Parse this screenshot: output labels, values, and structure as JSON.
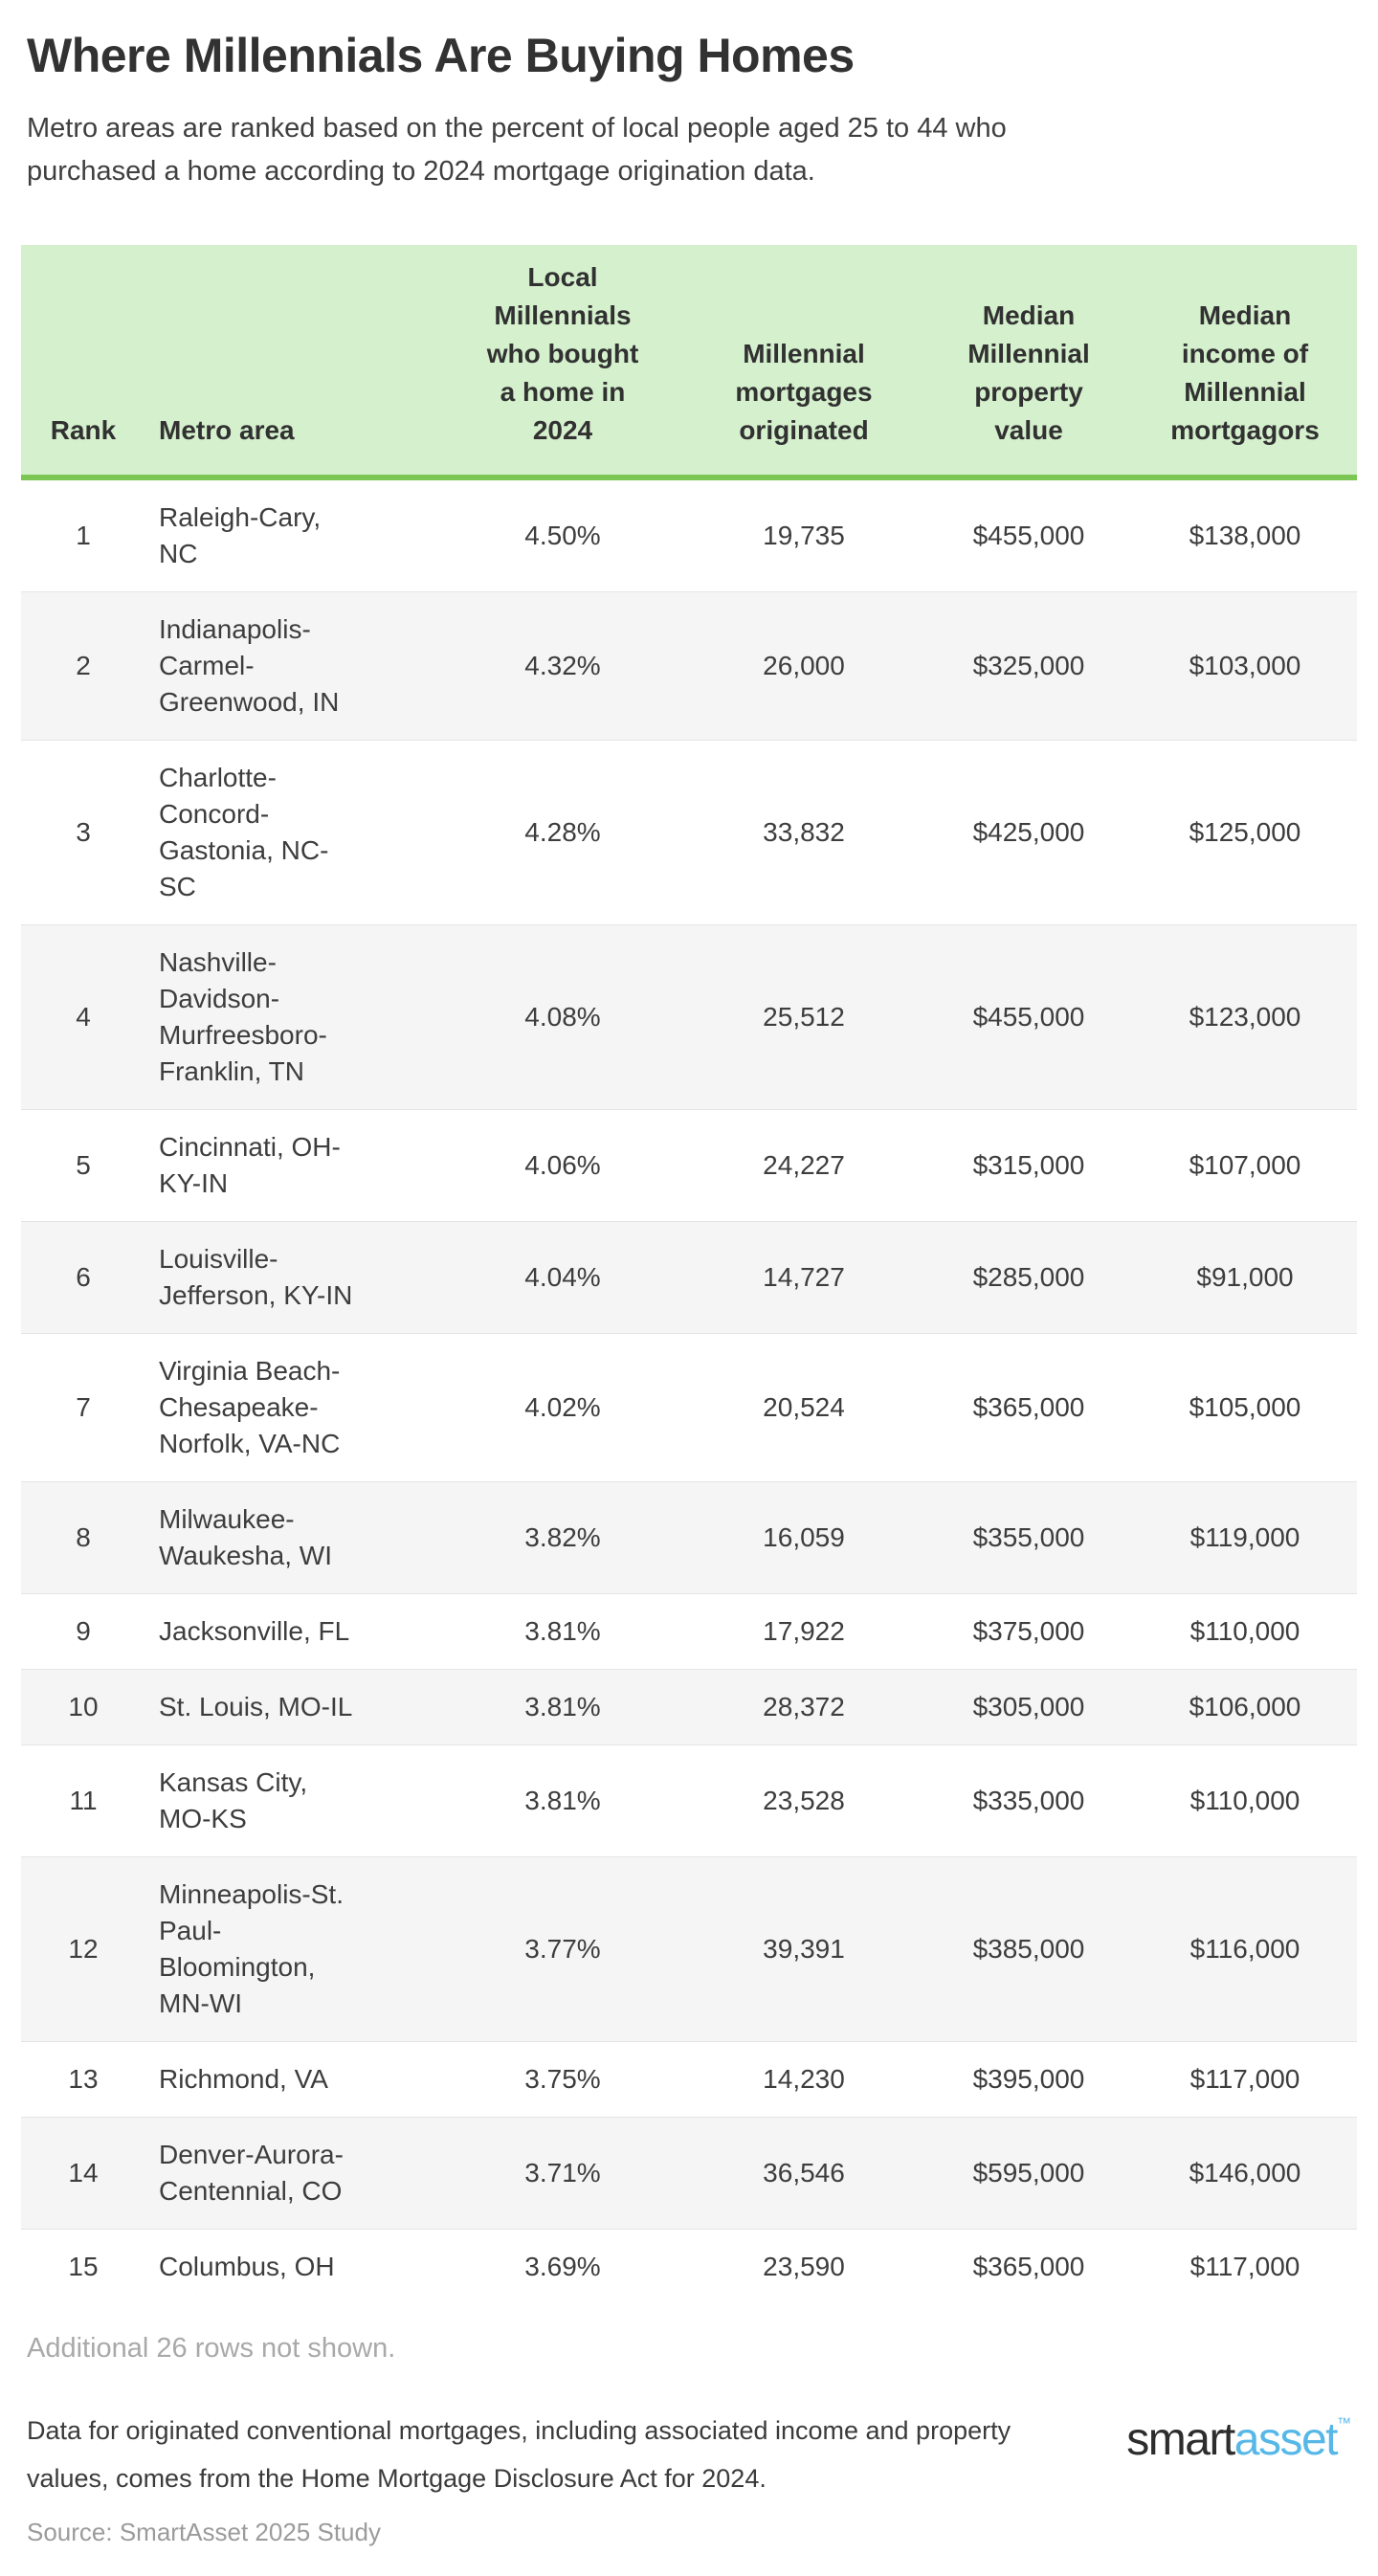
{
  "header": {
    "title": "Where Millennials Are Buying Homes",
    "subtitle": "Metro areas are ranked based on the percent of local people aged 25 to 44 who\npurchased a home according to 2024 mortgage origination data."
  },
  "table": {
    "columns": [
      {
        "key": "rank",
        "label": "Rank"
      },
      {
        "key": "metro",
        "label": "Metro area"
      },
      {
        "key": "pct",
        "label": "Local\nMillennials\nwho bought\na home in\n2024"
      },
      {
        "key": "mortgages",
        "label": "Millennial\nmortgages\noriginated"
      },
      {
        "key": "property",
        "label": "Median\nMillennial\nproperty\nvalue"
      },
      {
        "key": "income",
        "label": "Median\nincome of\nMillennial\nmortgagors"
      }
    ],
    "rows": [
      {
        "rank": "1",
        "metro": "Raleigh-Cary,\nNC",
        "pct": "4.50%",
        "mortgages": "19,735",
        "property": "$455,000",
        "income": "$138,000"
      },
      {
        "rank": "2",
        "metro": "Indianapolis-\nCarmel-\nGreenwood, IN",
        "pct": "4.32%",
        "mortgages": "26,000",
        "property": "$325,000",
        "income": "$103,000"
      },
      {
        "rank": "3",
        "metro": "Charlotte-\nConcord-\nGastonia, NC-\nSC",
        "pct": "4.28%",
        "mortgages": "33,832",
        "property": "$425,000",
        "income": "$125,000"
      },
      {
        "rank": "4",
        "metro": "Nashville-\nDavidson-\nMurfreesboro-\nFranklin, TN",
        "pct": "4.08%",
        "mortgages": "25,512",
        "property": "$455,000",
        "income": "$123,000"
      },
      {
        "rank": "5",
        "metro": "Cincinnati, OH-\nKY-IN",
        "pct": "4.06%",
        "mortgages": "24,227",
        "property": "$315,000",
        "income": "$107,000"
      },
      {
        "rank": "6",
        "metro": "Louisville-\nJefferson, KY-IN",
        "pct": "4.04%",
        "mortgages": "14,727",
        "property": "$285,000",
        "income": "$91,000"
      },
      {
        "rank": "7",
        "metro": "Virginia Beach-\nChesapeake-\nNorfolk, VA-NC",
        "pct": "4.02%",
        "mortgages": "20,524",
        "property": "$365,000",
        "income": "$105,000"
      },
      {
        "rank": "8",
        "metro": "Milwaukee-\nWaukesha, WI",
        "pct": "3.82%",
        "mortgages": "16,059",
        "property": "$355,000",
        "income": "$119,000"
      },
      {
        "rank": "9",
        "metro": "Jacksonville, FL",
        "pct": "3.81%",
        "mortgages": "17,922",
        "property": "$375,000",
        "income": "$110,000"
      },
      {
        "rank": "10",
        "metro": "St. Louis, MO-IL",
        "pct": "3.81%",
        "mortgages": "28,372",
        "property": "$305,000",
        "income": "$106,000"
      },
      {
        "rank": "11",
        "metro": "Kansas City,\nMO-KS",
        "pct": "3.81%",
        "mortgages": "23,528",
        "property": "$335,000",
        "income": "$110,000"
      },
      {
        "rank": "12",
        "metro": "Minneapolis-St.\nPaul-\nBloomington,\nMN-WI",
        "pct": "3.77%",
        "mortgages": "39,391",
        "property": "$385,000",
        "income": "$116,000"
      },
      {
        "rank": "13",
        "metro": "Richmond, VA",
        "pct": "3.75%",
        "mortgages": "14,230",
        "property": "$395,000",
        "income": "$117,000"
      },
      {
        "rank": "14",
        "metro": "Denver-Aurora-\nCentennial, CO",
        "pct": "3.71%",
        "mortgages": "36,546",
        "property": "$595,000",
        "income": "$146,000"
      },
      {
        "rank": "15",
        "metro": "Columbus, OH",
        "pct": "3.69%",
        "mortgages": "23,590",
        "property": "$365,000",
        "income": "$117,000"
      }
    ]
  },
  "footer": {
    "additional_note": "Additional 26 rows not shown.",
    "data_note": "Data for originated conventional mortgages, including associated income and property\nvalues, comes from the Home Mortgage Disclosure Act for 2024.",
    "source": "Source: SmartAsset 2025 Study",
    "logo": {
      "part1": "smart",
      "part2": "asset",
      "tm": "™"
    }
  },
  "colors": {
    "header_background": "#d5f0cd",
    "header_border_green": "#7cc653",
    "row_stripe": "#f5f5f5",
    "row_divider": "#e4e4e4",
    "body_text": "#3d3d3d",
    "muted_text": "#a9a9a9",
    "source_text": "#9b9b9b",
    "logo_dark": "#2d2d2d",
    "logo_blue": "#57b8e8"
  },
  "chart_data": {
    "type": "table",
    "title": "Where Millennials Are Buying Homes",
    "subtitle": "Metro areas are ranked based on the percent of local people aged 25 to 44 who purchased a home according to 2024 mortgage origination data.",
    "columns": [
      "Rank",
      "Metro area",
      "Local Millennials who bought a home in 2024",
      "Millennial mortgages originated",
      "Median Millennial property value",
      "Median income of Millennial mortgagors"
    ],
    "rows": [
      [
        1,
        "Raleigh-Cary, NC",
        "4.50%",
        19735,
        455000,
        138000
      ],
      [
        2,
        "Indianapolis-Carmel-Greenwood, IN",
        "4.32%",
        26000,
        325000,
        103000
      ],
      [
        3,
        "Charlotte-Concord-Gastonia, NC-SC",
        "4.28%",
        33832,
        425000,
        125000
      ],
      [
        4,
        "Nashville-Davidson-Murfreesboro-Franklin, TN",
        "4.08%",
        25512,
        455000,
        123000
      ],
      [
        5,
        "Cincinnati, OH-KY-IN",
        "4.06%",
        24227,
        315000,
        107000
      ],
      [
        6,
        "Louisville-Jefferson, KY-IN",
        "4.04%",
        14727,
        285000,
        91000
      ],
      [
        7,
        "Virginia Beach-Chesapeake-Norfolk, VA-NC",
        "4.02%",
        20524,
        365000,
        105000
      ],
      [
        8,
        "Milwaukee-Waukesha, WI",
        "3.82%",
        16059,
        355000,
        119000
      ],
      [
        9,
        "Jacksonville, FL",
        "3.81%",
        17922,
        375000,
        110000
      ],
      [
        10,
        "St. Louis, MO-IL",
        "3.81%",
        28372,
        305000,
        106000
      ],
      [
        11,
        "Kansas City, MO-KS",
        "3.81%",
        23528,
        335000,
        110000
      ],
      [
        12,
        "Minneapolis-St. Paul-Bloomington, MN-WI",
        "3.77%",
        39391,
        385000,
        116000
      ],
      [
        13,
        "Richmond, VA",
        "3.75%",
        14230,
        395000,
        117000
      ],
      [
        14,
        "Denver-Aurora-Centennial, CO",
        "3.71%",
        36546,
        595000,
        146000
      ],
      [
        15,
        "Columbus, OH",
        "3.69%",
        23590,
        365000,
        117000
      ]
    ],
    "notes": [
      "Additional 26 rows not shown.",
      "Data for originated conventional mortgages, including associated income and property values, comes from the Home Mortgage Disclosure Act for 2024.",
      "Source: SmartAsset 2025 Study"
    ]
  }
}
